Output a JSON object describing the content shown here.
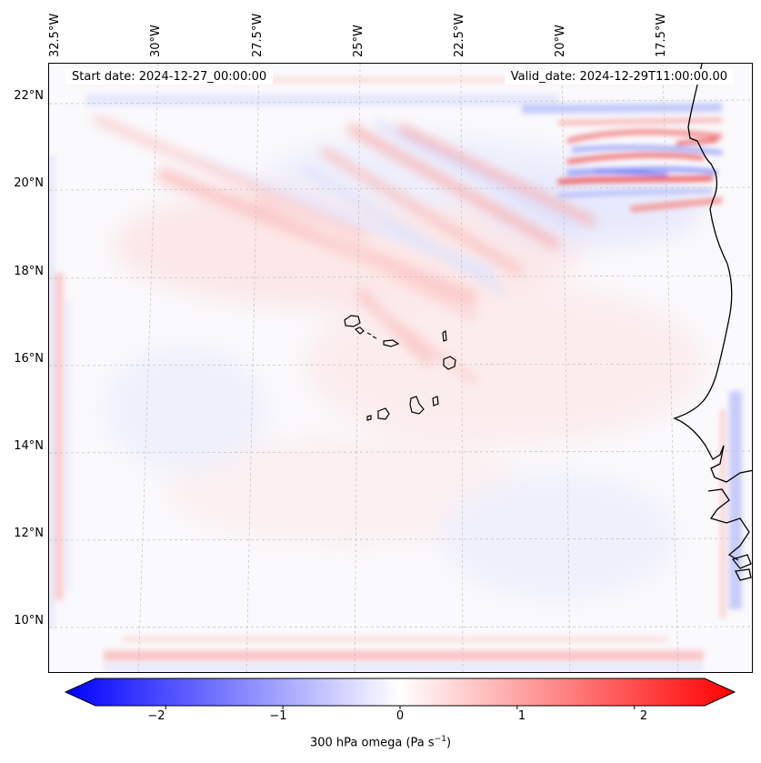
{
  "map": {
    "start_date": "Start date: 2024-12-27_00:00:00",
    "valid_date": "Valid_date: 2024-12-29T11:00:00.00",
    "lon_labels": [
      "32.5°W",
      "30°W",
      "27.5°W",
      "25°W",
      "22.5°W",
      "20°W",
      "17.5°W"
    ],
    "lat_labels": [
      "22°N",
      "20°N",
      "18°N",
      "16°N",
      "14°N",
      "12°N",
      "10°N"
    ],
    "colors": {
      "negative": "#0000ff",
      "positive": "#ff0000",
      "neutral": "#ffffff",
      "coast": "#000000"
    }
  },
  "colorbar": {
    "ticks": [
      "−2",
      "−1",
      "0",
      "1",
      "2"
    ],
    "tick_values": [
      -2,
      -1,
      0,
      1,
      2
    ],
    "range": [
      -2.6,
      2.6
    ],
    "label_main": "300 hPa omega (Pa s",
    "label_sup": "−1",
    "label_end": ")"
  }
}
